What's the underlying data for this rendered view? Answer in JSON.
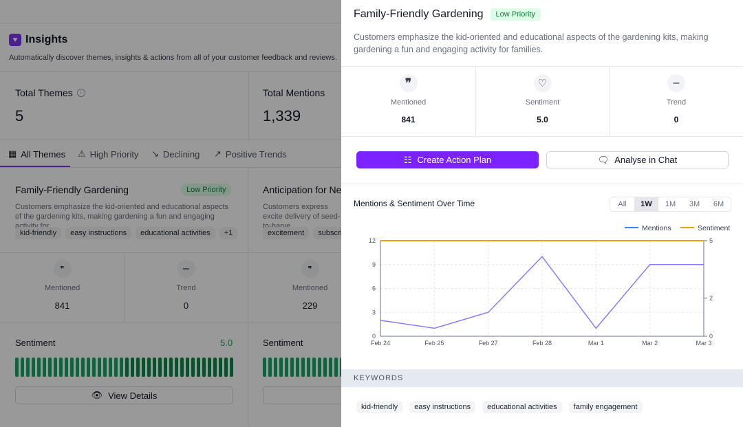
{
  "insights": {
    "title": "Insights",
    "subtitle": "Automatically discover themes, insights & actions from all of your customer feedback and reviews.",
    "total_themes_label": "Total Themes",
    "total_themes": "5",
    "total_mentions_label": "Total Mentions",
    "total_mentions": "1,339"
  },
  "tabs": [
    {
      "label": "All Themes"
    },
    {
      "label": "High Priority"
    },
    {
      "label": "Declining"
    },
    {
      "label": "Positive Trends"
    }
  ],
  "cards": [
    {
      "title": "Family-Friendly Gardening",
      "badge": "Low Priority",
      "desc": "Customers emphasize the kid-oriented and educational aspects of the gardening kits, making gardening a fun and engaging activity for...",
      "tags": [
        "kid-friendly",
        "easy instructions",
        "educational activities",
        "+1"
      ],
      "mentioned_label": "Mentioned",
      "mentioned": "841",
      "trend_label": "Trend",
      "trend": "0",
      "sentiment_label": "Sentiment",
      "sentiment": "5.0",
      "view": "View Details"
    },
    {
      "title": "Anticipation for Ne",
      "desc": "Customers express excite delivery of seed-to-harve",
      "tags": [
        "excitement",
        "subscrip"
      ],
      "mentioned_label": "Mentioned",
      "mentioned": "229",
      "sentiment_label": "Sentiment"
    }
  ],
  "detail": {
    "title": "Family-Friendly Gardening",
    "badge": "Low Priority",
    "desc": "Customers emphasize the kid-oriented and educational aspects of the gardening kits, making gardening a fun and engaging activity for families.",
    "stats": [
      {
        "label": "Mentioned",
        "value": "841",
        "icon": "quote-icon"
      },
      {
        "label": "Sentiment",
        "value": "5.0",
        "icon": "heart-icon"
      },
      {
        "label": "Trend",
        "value": "0",
        "icon": "minus-icon"
      }
    ],
    "create": "Create Action Plan",
    "analyse": "Analyse in Chat",
    "ranges": [
      "All",
      "1W",
      "1M",
      "3M",
      "6M"
    ],
    "active_range": "1W",
    "keywords_label": "KEYWORDS",
    "keywords": [
      "kid-friendly",
      "easy instructions",
      "educational activities",
      "family engagement"
    ]
  },
  "colors": {
    "accent": "#7c22ff",
    "mentions": "#8b7cf6",
    "sentiment": "#f59e0b",
    "green": "#22a06b"
  },
  "chart_data": {
    "type": "line",
    "title": "Mentions & Sentiment Over Time",
    "categories": [
      "Feb 24",
      "Feb 25",
      "Feb 27",
      "Feb 28",
      "Mar 1",
      "Mar 2",
      "Mar 3"
    ],
    "series": [
      {
        "name": "Mentions",
        "axis": "left",
        "values": [
          2,
          1,
          3,
          10,
          1,
          9,
          9
        ]
      },
      {
        "name": "Sentiment",
        "axis": "right",
        "values": [
          5,
          5,
          5,
          5,
          5,
          5,
          5
        ]
      }
    ],
    "ylim": [
      0,
      12
    ],
    "yticks": [
      "0",
      "3",
      "6",
      "9",
      "12"
    ],
    "y2lim": [
      0,
      5
    ],
    "y2ticks": [
      "0",
      "2",
      "5"
    ],
    "legend": "top-right",
    "grid": true
  }
}
